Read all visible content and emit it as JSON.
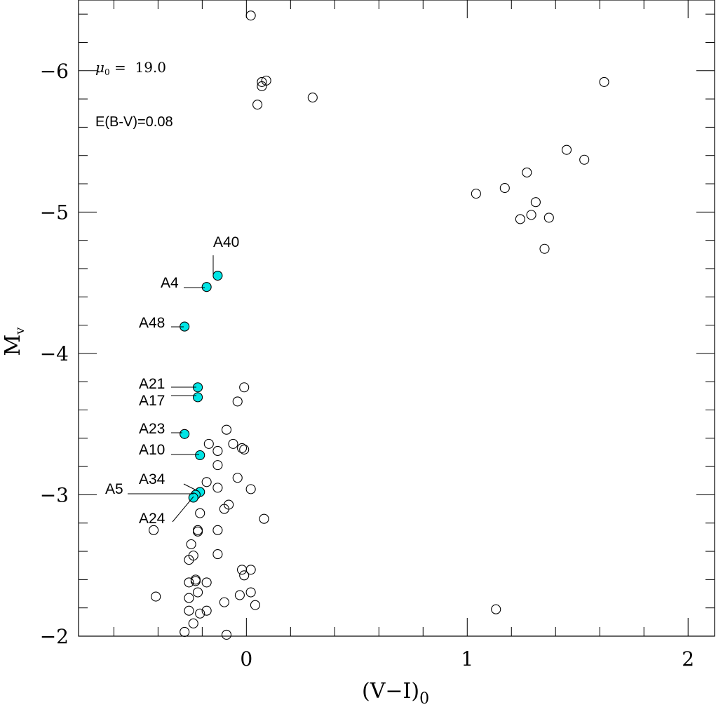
{
  "chart_data": {
    "type": "scatter",
    "xlabel": "(V−I)",
    "xlabel_sub": "0",
    "ylabel": "M",
    "ylabel_sub": "v",
    "xlim": [
      -0.76,
      2.12
    ],
    "ylim": [
      -6.5,
      -2.0
    ],
    "y_inverted": true,
    "x_ticks": [
      0,
      1,
      2
    ],
    "x_tick_labels": [
      "0",
      "1",
      "2"
    ],
    "y_ticks": [
      -6,
      -5,
      -4,
      -3,
      -2
    ],
    "y_tick_labels": [
      "−6",
      "−5",
      "−4",
      "−3",
      "−2"
    ],
    "highlight_color": "#00e5e5",
    "annotations": {
      "mu_symbol": "μ",
      "mu_sub": "0",
      "mu_value": " =  19.0",
      "extinction": "E(B-V)=0.08"
    },
    "points": [
      {
        "x": 0.02,
        "y": -6.39
      },
      {
        "x": 0.09,
        "y": -5.93
      },
      {
        "x": 0.07,
        "y": -5.92
      },
      {
        "x": 0.07,
        "y": -5.89
      },
      {
        "x": 0.05,
        "y": -5.76
      },
      {
        "x": 0.3,
        "y": -5.81
      },
      {
        "x": 1.62,
        "y": -5.92
      },
      {
        "x": 1.45,
        "y": -5.44
      },
      {
        "x": 1.53,
        "y": -5.37
      },
      {
        "x": 1.27,
        "y": -5.28
      },
      {
        "x": 1.17,
        "y": -5.17
      },
      {
        "x": 1.04,
        "y": -5.13
      },
      {
        "x": 1.31,
        "y": -5.07
      },
      {
        "x": 1.29,
        "y": -4.98
      },
      {
        "x": 1.24,
        "y": -4.95
      },
      {
        "x": 1.37,
        "y": -4.96
      },
      {
        "x": 1.35,
        "y": -4.74
      },
      {
        "x": -0.01,
        "y": -3.76
      },
      {
        "x": -0.04,
        "y": -3.66
      },
      {
        "x": -0.09,
        "y": -3.46
      },
      {
        "x": -0.17,
        "y": -3.36
      },
      {
        "x": -0.13,
        "y": -3.31
      },
      {
        "x": -0.06,
        "y": -3.36
      },
      {
        "x": -0.02,
        "y": -3.33
      },
      {
        "x": -0.01,
        "y": -3.32
      },
      {
        "x": -0.13,
        "y": -3.21
      },
      {
        "x": -0.04,
        "y": -3.12
      },
      {
        "x": -0.18,
        "y": -3.09
      },
      {
        "x": -0.13,
        "y": -3.05
      },
      {
        "x": 0.02,
        "y": -3.04
      },
      {
        "x": -0.08,
        "y": -2.93
      },
      {
        "x": -0.1,
        "y": -2.9
      },
      {
        "x": -0.21,
        "y": -2.87
      },
      {
        "x": 0.08,
        "y": -2.83
      },
      {
        "x": -0.42,
        "y": -2.75
      },
      {
        "x": -0.22,
        "y": -2.75
      },
      {
        "x": -0.22,
        "y": -2.74
      },
      {
        "x": -0.13,
        "y": -2.75
      },
      {
        "x": -0.25,
        "y": -2.65
      },
      {
        "x": -0.24,
        "y": -2.57
      },
      {
        "x": -0.26,
        "y": -2.54
      },
      {
        "x": -0.13,
        "y": -2.58
      },
      {
        "x": -0.02,
        "y": -2.47
      },
      {
        "x": 0.02,
        "y": -2.47
      },
      {
        "x": -0.01,
        "y": -2.43
      },
      {
        "x": -0.23,
        "y": -2.4
      },
      {
        "x": -0.23,
        "y": -2.39
      },
      {
        "x": -0.26,
        "y": -2.38
      },
      {
        "x": -0.18,
        "y": -2.38
      },
      {
        "x": 0.02,
        "y": -2.31
      },
      {
        "x": -0.41,
        "y": -2.28
      },
      {
        "x": -0.22,
        "y": -2.31
      },
      {
        "x": -0.26,
        "y": -2.27
      },
      {
        "x": -0.03,
        "y": -2.29
      },
      {
        "x": -0.1,
        "y": -2.24
      },
      {
        "x": 0.04,
        "y": -2.22
      },
      {
        "x": -0.26,
        "y": -2.18
      },
      {
        "x": -0.21,
        "y": -2.16
      },
      {
        "x": -0.18,
        "y": -2.18
      },
      {
        "x": 1.13,
        "y": -2.19
      },
      {
        "x": -0.24,
        "y": -2.09
      },
      {
        "x": -0.28,
        "y": -2.03
      },
      {
        "x": -0.09,
        "y": -2.01
      }
    ],
    "highlighted": [
      {
        "name": "A40",
        "x": -0.13,
        "y": -4.55
      },
      {
        "name": "A4",
        "x": -0.18,
        "y": -4.47
      },
      {
        "name": "A48",
        "x": -0.28,
        "y": -4.19
      },
      {
        "name": "A21",
        "x": -0.22,
        "y": -3.76
      },
      {
        "name": "A17",
        "x": -0.22,
        "y": -3.69
      },
      {
        "name": "A23",
        "x": -0.28,
        "y": -3.43
      },
      {
        "name": "A10",
        "x": -0.21,
        "y": -3.28
      },
      {
        "name": "A34",
        "x": -0.21,
        "y": -3.02
      },
      {
        "name": "A5",
        "x": -0.23,
        "y": -3.0
      },
      {
        "name": "A24",
        "x": -0.24,
        "y": -2.98
      }
    ]
  }
}
